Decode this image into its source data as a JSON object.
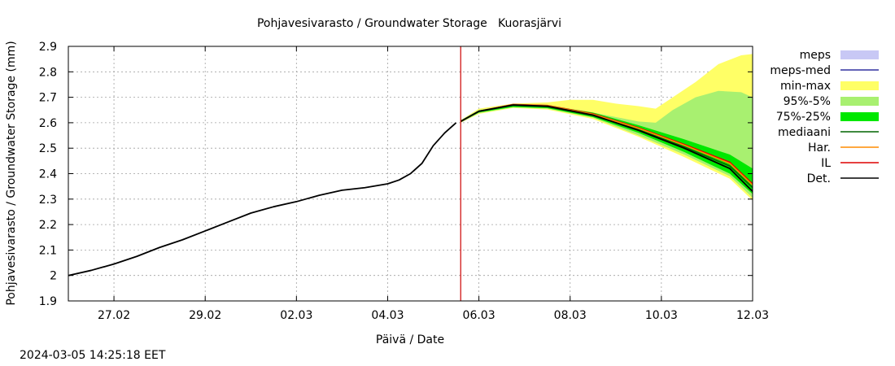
{
  "chart_data": {
    "type": "line",
    "title": "Pohjavesivarasto / Groundwater Storage   Kuorasjärvi",
    "xlabel": "Päivä / Date",
    "ylabel": "Pohjavesivarasto / Groundwater Storage (mm)",
    "ylim": [
      1.9,
      2.9
    ],
    "xlim": [
      "2024-02-26",
      "2024-03-12"
    ],
    "y_ticks": [
      1.9,
      2.0,
      2.1,
      2.2,
      2.3,
      2.4,
      2.5,
      2.6,
      2.7,
      2.8,
      2.9
    ],
    "y_tick_labels": [
      "1.9",
      "2",
      "2.1",
      "2.2",
      "2.3",
      "2.4",
      "2.5",
      "2.6",
      "2.7",
      "2.8",
      "2.9"
    ],
    "x_ticks": [
      {
        "date": "2024-02-27",
        "label": "27.02"
      },
      {
        "date": "2024-02-29",
        "label": "29.02"
      },
      {
        "date": "2024-03-02",
        "label": "02.03"
      },
      {
        "date": "2024-03-04",
        "label": "04.03"
      },
      {
        "date": "2024-03-06",
        "label": "06.03"
      },
      {
        "date": "2024-03-08",
        "label": "08.03"
      },
      {
        "date": "2024-03-10",
        "label": "10.03"
      },
      {
        "date": "2024-03-12",
        "label": "12.03"
      }
    ],
    "grid": true,
    "legend_position": "right",
    "forecast_start": "2024-03-05 14:25",
    "forecast_line_color": "#cc0000",
    "legend": [
      {
        "name": "meps",
        "kind": "band",
        "color": "#c8c8f5"
      },
      {
        "name": "meps-med",
        "kind": "line",
        "color": "#3030a0"
      },
      {
        "name": "min-max",
        "kind": "band",
        "color": "#ffff66"
      },
      {
        "name": "95%-5%",
        "kind": "band",
        "color": "#a8f070"
      },
      {
        "name": "75%-25%",
        "kind": "band",
        "color": "#00e800"
      },
      {
        "name": "mediaani",
        "kind": "line",
        "color": "#006400"
      },
      {
        "name": "Har.",
        "kind": "line",
        "color": "#ff8c00"
      },
      {
        "name": "IL",
        "kind": "line",
        "color": "#dd0000"
      },
      {
        "name": "Det.",
        "kind": "line",
        "color": "#000000"
      }
    ],
    "observed": {
      "name": "Det.",
      "points": [
        [
          "2024-02-26 00:00",
          2.0
        ],
        [
          "2024-02-26 12:00",
          2.02
        ],
        [
          "2024-02-27 00:00",
          2.045
        ],
        [
          "2024-02-27 12:00",
          2.075
        ],
        [
          "2024-02-28 00:00",
          2.11
        ],
        [
          "2024-02-28 12:00",
          2.14
        ],
        [
          "2024-02-29 00:00",
          2.175
        ],
        [
          "2024-02-29 12:00",
          2.21
        ],
        [
          "2024-03-01 00:00",
          2.245
        ],
        [
          "2024-03-01 12:00",
          2.27
        ],
        [
          "2024-03-02 00:00",
          2.29
        ],
        [
          "2024-03-02 12:00",
          2.315
        ],
        [
          "2024-03-03 00:00",
          2.335
        ],
        [
          "2024-03-03 12:00",
          2.345
        ],
        [
          "2024-03-04 00:00",
          2.36
        ],
        [
          "2024-03-04 06:00",
          2.375
        ],
        [
          "2024-03-04 12:00",
          2.4
        ],
        [
          "2024-03-04 18:00",
          2.44
        ],
        [
          "2024-03-05 00:00",
          2.51
        ],
        [
          "2024-03-05 06:00",
          2.56
        ],
        [
          "2024-03-05 12:00",
          2.6
        ]
      ]
    },
    "forecast_lines": [
      {
        "name": "Det.",
        "points": [
          [
            "2024-03-05 14:25",
            2.605
          ],
          [
            "2024-03-06 00:00",
            2.645
          ],
          [
            "2024-03-06 18:00",
            2.67
          ],
          [
            "2024-03-07 12:00",
            2.665
          ],
          [
            "2024-03-08 12:00",
            2.63
          ],
          [
            "2024-03-09 12:00",
            2.57
          ],
          [
            "2024-03-10 12:00",
            2.5
          ],
          [
            "2024-03-11 12:00",
            2.42
          ],
          [
            "2024-03-12 00:00",
            2.33
          ]
        ]
      },
      {
        "name": "IL",
        "points": [
          [
            "2024-03-05 14:25",
            2.605
          ],
          [
            "2024-03-06 00:00",
            2.645
          ],
          [
            "2024-03-06 18:00",
            2.672
          ],
          [
            "2024-03-07 12:00",
            2.668
          ],
          [
            "2024-03-08 12:00",
            2.635
          ],
          [
            "2024-03-09 12:00",
            2.58
          ],
          [
            "2024-03-10 12:00",
            2.515
          ],
          [
            "2024-03-11 12:00",
            2.445
          ],
          [
            "2024-03-12 00:00",
            2.36
          ]
        ]
      },
      {
        "name": "Har.",
        "points": [
          [
            "2024-03-05 14:25",
            2.605
          ],
          [
            "2024-03-06 00:00",
            2.645
          ],
          [
            "2024-03-06 18:00",
            2.671
          ],
          [
            "2024-03-07 12:00",
            2.667
          ],
          [
            "2024-03-08 12:00",
            2.633
          ],
          [
            "2024-03-09 12:00",
            2.578
          ],
          [
            "2024-03-10 12:00",
            2.512
          ],
          [
            "2024-03-11 12:00",
            2.44
          ],
          [
            "2024-03-12 00:00",
            2.355
          ]
        ]
      },
      {
        "name": "mediaani",
        "points": [
          [
            "2024-03-05 14:25",
            2.605
          ],
          [
            "2024-03-06 00:00",
            2.645
          ],
          [
            "2024-03-06 18:00",
            2.668
          ],
          [
            "2024-03-07 12:00",
            2.663
          ],
          [
            "2024-03-08 12:00",
            2.628
          ],
          [
            "2024-03-09 12:00",
            2.572
          ],
          [
            "2024-03-10 12:00",
            2.505
          ],
          [
            "2024-03-11 12:00",
            2.43
          ],
          [
            "2024-03-12 00:00",
            2.345
          ]
        ]
      }
    ],
    "bands": [
      {
        "name": "min-max",
        "upper": [
          [
            "2024-03-05 14:25",
            2.61
          ],
          [
            "2024-03-06 00:00",
            2.655
          ],
          [
            "2024-03-06 18:00",
            2.675
          ],
          [
            "2024-03-07 12:00",
            2.68
          ],
          [
            "2024-03-08 00:00",
            2.69
          ],
          [
            "2024-03-08 12:00",
            2.69
          ],
          [
            "2024-03-09 00:00",
            2.675
          ],
          [
            "2024-03-09 12:00",
            2.665
          ],
          [
            "2024-03-09 21:00",
            2.655
          ],
          [
            "2024-03-10 06:00",
            2.7
          ],
          [
            "2024-03-10 18:00",
            2.76
          ],
          [
            "2024-03-11 06:00",
            2.83
          ],
          [
            "2024-03-11 18:00",
            2.865
          ],
          [
            "2024-03-12 00:00",
            2.87
          ]
        ],
        "lower": [
          [
            "2024-03-05 14:25",
            2.6
          ],
          [
            "2024-03-06 00:00",
            2.635
          ],
          [
            "2024-03-06 18:00",
            2.658
          ],
          [
            "2024-03-07 12:00",
            2.652
          ],
          [
            "2024-03-08 12:00",
            2.615
          ],
          [
            "2024-03-09 12:00",
            2.545
          ],
          [
            "2024-03-10 12:00",
            2.465
          ],
          [
            "2024-03-11 12:00",
            2.38
          ],
          [
            "2024-03-12 00:00",
            2.295
          ]
        ]
      },
      {
        "name": "95%-5%",
        "upper": [
          [
            "2024-03-05 14:25",
            2.61
          ],
          [
            "2024-03-06 00:00",
            2.65
          ],
          [
            "2024-03-06 18:00",
            2.672
          ],
          [
            "2024-03-07 12:00",
            2.67
          ],
          [
            "2024-03-08 12:00",
            2.64
          ],
          [
            "2024-03-09 12:00",
            2.605
          ],
          [
            "2024-03-09 21:00",
            2.6
          ],
          [
            "2024-03-10 06:00",
            2.65
          ],
          [
            "2024-03-10 18:00",
            2.7
          ],
          [
            "2024-03-11 06:00",
            2.725
          ],
          [
            "2024-03-11 18:00",
            2.72
          ],
          [
            "2024-03-12 00:00",
            2.7
          ]
        ],
        "lower": [
          [
            "2024-03-05 14:25",
            2.6
          ],
          [
            "2024-03-06 00:00",
            2.638
          ],
          [
            "2024-03-06 18:00",
            2.66
          ],
          [
            "2024-03-07 12:00",
            2.655
          ],
          [
            "2024-03-08 12:00",
            2.62
          ],
          [
            "2024-03-09 12:00",
            2.55
          ],
          [
            "2024-03-10 12:00",
            2.475
          ],
          [
            "2024-03-11 12:00",
            2.39
          ],
          [
            "2024-03-12 00:00",
            2.305
          ]
        ]
      },
      {
        "name": "75%-25%",
        "upper": [
          [
            "2024-03-05 14:25",
            2.607
          ],
          [
            "2024-03-06 00:00",
            2.648
          ],
          [
            "2024-03-06 18:00",
            2.67
          ],
          [
            "2024-03-07 12:00",
            2.668
          ],
          [
            "2024-03-08 12:00",
            2.64
          ],
          [
            "2024-03-09 12:00",
            2.59
          ],
          [
            "2024-03-10 12:00",
            2.535
          ],
          [
            "2024-03-11 12:00",
            2.475
          ],
          [
            "2024-03-12 00:00",
            2.42
          ]
        ],
        "lower": [
          [
            "2024-03-05 14:25",
            2.603
          ],
          [
            "2024-03-06 00:00",
            2.64
          ],
          [
            "2024-03-06 18:00",
            2.662
          ],
          [
            "2024-03-07 12:00",
            2.657
          ],
          [
            "2024-03-08 12:00",
            2.622
          ],
          [
            "2024-03-09 12:00",
            2.56
          ],
          [
            "2024-03-10 12:00",
            2.485
          ],
          [
            "2024-03-11 12:00",
            2.4
          ],
          [
            "2024-03-12 00:00",
            2.32
          ]
        ]
      }
    ]
  },
  "footer": {
    "timestamp": "2024-03-05 14:25:18 EET"
  }
}
